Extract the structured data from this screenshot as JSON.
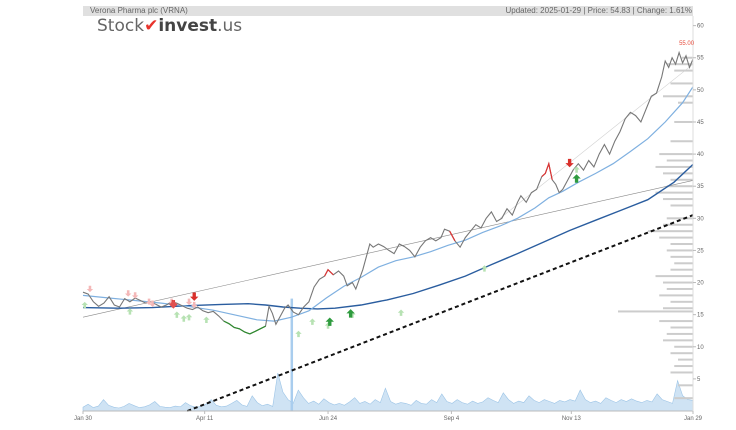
{
  "header": {
    "title": "Verona Pharma plc (VRNA)",
    "updated": "Updated: 2025-01-29 | Price: 54.83 | Change: 1.61%"
  },
  "logo": {
    "part1": "Stock",
    "part2": "invest",
    "part3": ".us"
  },
  "price_label": "55.00",
  "chart_data": {
    "type": "line",
    "title": "Verona Pharma plc (VRNA)",
    "x_ticks": [
      "Jan 30",
      "Apr 11",
      "Jun 24",
      "Sep 4",
      "Nov 13",
      "Jan 29"
    ],
    "y_ticks": [
      5,
      10,
      15,
      20,
      25,
      30,
      35,
      40,
      45,
      50,
      55,
      60
    ],
    "ylim": [
      0,
      61.5
    ],
    "grid": false,
    "series": [
      {
        "points": [
          [
            0,
            18.5
          ],
          [
            3,
            18.2
          ],
          [
            6,
            17.0
          ],
          [
            9,
            16.3
          ],
          [
            12,
            16.8
          ],
          [
            15,
            17.8
          ],
          [
            18,
            16.5
          ],
          [
            21,
            16.2
          ],
          [
            24,
            17.5
          ],
          [
            27,
            17.0
          ],
          [
            30,
            17.6
          ],
          [
            33,
            17.2
          ],
          [
            36,
            16.8
          ],
          [
            39,
            17.0
          ],
          [
            42,
            16.6
          ],
          [
            45,
            16.2
          ],
          [
            48,
            16.5
          ],
          [
            51,
            17.0
          ],
          [
            54,
            16.8
          ],
          [
            57,
            16.4
          ],
          [
            60,
            16.0
          ],
          [
            63,
            15.8
          ],
          [
            66,
            16.2
          ],
          [
            69,
            15.6
          ],
          [
            72,
            15.3
          ],
          [
            75,
            15.5
          ],
          [
            78,
            14.8
          ],
          [
            81,
            14.0
          ],
          [
            84,
            13.6
          ],
          [
            87,
            13.0
          ],
          [
            90,
            12.8
          ],
          [
            93,
            12.3
          ],
          [
            96,
            12.0
          ],
          [
            99,
            12.4
          ],
          [
            102,
            12.8
          ],
          [
            105,
            13.2
          ],
          [
            107,
            16.3
          ],
          [
            109,
            15.2
          ],
          [
            111,
            13.5
          ],
          [
            114,
            15.0
          ],
          [
            116,
            16.0
          ],
          [
            118,
            16.5
          ],
          [
            121,
            15.4
          ],
          [
            124,
            15.0
          ],
          [
            127,
            16.2
          ],
          [
            130,
            17.0
          ],
          [
            133,
            19.3
          ],
          [
            136,
            20.5
          ],
          [
            139,
            21.0
          ],
          [
            141,
            22.0
          ],
          [
            144,
            21.2
          ],
          [
            147,
            21.8
          ],
          [
            150,
            21.0
          ],
          [
            152,
            19.5
          ],
          [
            155,
            20.0
          ],
          [
            157,
            19.0
          ],
          [
            159,
            20.5
          ],
          [
            161,
            22.0
          ],
          [
            163,
            24.0
          ],
          [
            165,
            26.0
          ],
          [
            167,
            25.5
          ],
          [
            170,
            26.0
          ],
          [
            173,
            25.6
          ],
          [
            176,
            25.0
          ],
          [
            179,
            24.5
          ],
          [
            182,
            26.0
          ],
          [
            185,
            25.6
          ],
          [
            188,
            25.0
          ],
          [
            191,
            24.0
          ],
          [
            194,
            25.5
          ],
          [
            197,
            26.5
          ],
          [
            200,
            27.0
          ],
          [
            203,
            26.5
          ],
          [
            206,
            27.0
          ],
          [
            208,
            28.3
          ],
          [
            211,
            28.0
          ],
          [
            214,
            26.5
          ],
          [
            217,
            25.5
          ],
          [
            220,
            27.0
          ],
          [
            223,
            28.0
          ],
          [
            226,
            29.0
          ],
          [
            229,
            28.5
          ],
          [
            232,
            30.0
          ],
          [
            235,
            31.0
          ],
          [
            238,
            29.5
          ],
          [
            241,
            30.0
          ],
          [
            244,
            31.5
          ],
          [
            247,
            30.5
          ],
          [
            250,
            32.5
          ],
          [
            252,
            33.5
          ],
          [
            255,
            32.5
          ],
          [
            258,
            34.0
          ],
          [
            261,
            34.5
          ],
          [
            264,
            36.5
          ],
          [
            266,
            37.0
          ],
          [
            268,
            38.5
          ],
          [
            270,
            36.0
          ],
          [
            272,
            35.3
          ],
          [
            274,
            34.0
          ],
          [
            276,
            34.5
          ],
          [
            279,
            36.0
          ],
          [
            282,
            37.5
          ],
          [
            285,
            38.5
          ],
          [
            288,
            37.5
          ],
          [
            291,
            39.0
          ],
          [
            294,
            38.0
          ],
          [
            297,
            40.0
          ],
          [
            300,
            41.5
          ],
          [
            303,
            40.0
          ],
          [
            306,
            42.0
          ],
          [
            309,
            43.5
          ],
          [
            312,
            45.5
          ],
          [
            315,
            46.5
          ],
          [
            318,
            46.0
          ],
          [
            321,
            45.0
          ],
          [
            324,
            47.0
          ],
          [
            327,
            49.0
          ],
          [
            330,
            49.5
          ],
          [
            333,
            52.0
          ],
          [
            335,
            54.5
          ],
          [
            337,
            53.5
          ],
          [
            339,
            55.0
          ],
          [
            341,
            54.0
          ],
          [
            343,
            55.8
          ],
          [
            345,
            54.2
          ],
          [
            347,
            55.3
          ],
          [
            349,
            53.5
          ],
          [
            351,
            54.8
          ]
        ]
      },
      {
        "points": [
          [
            0,
            18.0
          ],
          [
            15,
            17.6
          ],
          [
            30,
            17.2
          ],
          [
            45,
            16.8
          ],
          [
            60,
            16.3
          ],
          [
            75,
            15.7
          ],
          [
            90,
            14.8
          ],
          [
            100,
            14.2
          ],
          [
            110,
            14.0
          ],
          [
            120,
            14.6
          ],
          [
            130,
            15.6
          ],
          [
            140,
            17.6
          ],
          [
            150,
            19.4
          ],
          [
            160,
            20.8
          ],
          [
            170,
            22.4
          ],
          [
            180,
            23.4
          ],
          [
            190,
            24.0
          ],
          [
            200,
            24.8
          ],
          [
            210,
            25.8
          ],
          [
            220,
            26.6
          ],
          [
            230,
            27.8
          ],
          [
            240,
            28.8
          ],
          [
            250,
            30.0
          ],
          [
            260,
            31.6
          ],
          [
            268,
            33.2
          ],
          [
            276,
            34.2
          ],
          [
            285,
            35.6
          ],
          [
            295,
            37.0
          ],
          [
            305,
            38.5
          ],
          [
            315,
            40.4
          ],
          [
            325,
            42.4
          ],
          [
            335,
            45.0
          ],
          [
            345,
            48.0
          ],
          [
            351,
            50.5
          ]
        ]
      },
      {
        "points": [
          [
            0,
            16.1
          ],
          [
            20,
            16.0
          ],
          [
            40,
            16.1
          ],
          [
            60,
            16.4
          ],
          [
            80,
            16.6
          ],
          [
            95,
            16.7
          ],
          [
            105,
            16.5
          ],
          [
            115,
            16.2
          ],
          [
            125,
            16.0
          ],
          [
            135,
            15.9
          ],
          [
            145,
            16.0
          ],
          [
            160,
            16.5
          ],
          [
            175,
            17.3
          ],
          [
            190,
            18.3
          ],
          [
            205,
            19.6
          ],
          [
            220,
            21.0
          ],
          [
            235,
            22.8
          ],
          [
            250,
            24.5
          ],
          [
            265,
            26.3
          ],
          [
            280,
            28.1
          ],
          [
            295,
            29.7
          ],
          [
            310,
            31.3
          ],
          [
            325,
            32.9
          ],
          [
            340,
            35.6
          ],
          [
            351,
            38.4
          ]
        ]
      },
      {
        "points": [
          [
            60,
            0
          ],
          [
            351,
            30.5
          ]
        ]
      },
      {
        "points": [
          [
            0,
            14.6
          ],
          [
            351,
            35.9
          ]
        ]
      }
    ],
    "buy_signals": [
      [
        1,
        16.5
      ],
      [
        27,
        15.5
      ],
      [
        54,
        15.0
      ],
      [
        58,
        14.4
      ],
      [
        61,
        14.6
      ],
      [
        71,
        14.2
      ],
      [
        124,
        12.0
      ],
      [
        132,
        13.9
      ],
      [
        141,
        13.3
      ],
      [
        155,
        15.0
      ],
      [
        183,
        15.3
      ],
      [
        231,
        22.2
      ],
      [
        284,
        37.6
      ]
    ],
    "sell_signals": [
      [
        4,
        19.0
      ],
      [
        26,
        18.3
      ],
      [
        30,
        18.0
      ],
      [
        38,
        17.0
      ],
      [
        40,
        16.7
      ],
      [
        51,
        17.0
      ],
      [
        61,
        17.0
      ],
      [
        64,
        16.5
      ]
    ],
    "buy_signals_strong": [
      [
        142,
        13.9
      ],
      [
        154,
        15.2
      ],
      [
        284,
        36.2
      ]
    ],
    "sell_signals_strong": [
      [
        52,
        16.6
      ],
      [
        64,
        17.8
      ],
      [
        280,
        38.6
      ]
    ],
    "volume": [
      0.1,
      0.18,
      0.09,
      0.13,
      0.3,
      0.15,
      0.1,
      0.08,
      0.12,
      0.2,
      0.14,
      0.09,
      0.11,
      0.16,
      0.25,
      0.12,
      0.1,
      0.09,
      0.13,
      0.11,
      0.22,
      0.14,
      0.1,
      0.12,
      0.18,
      0.3,
      0.15,
      0.11,
      0.13,
      0.2,
      0.28,
      0.16,
      0.12,
      0.4,
      0.22,
      0.14,
      0.18,
      0.12,
      1.0,
      0.5,
      0.3,
      0.2,
      0.55,
      0.35,
      0.2,
      0.26,
      0.18,
      0.32,
      0.22,
      0.16,
      0.2,
      0.15,
      0.24,
      0.35,
      0.2,
      0.25,
      0.18,
      0.3,
      0.22,
      0.6,
      0.25,
      0.18,
      0.22,
      0.2,
      0.15,
      0.28,
      0.2,
      0.18,
      0.3,
      0.22,
      0.45,
      0.25,
      0.2,
      0.3,
      0.22,
      0.18,
      0.26,
      0.2,
      0.24,
      0.35,
      0.28,
      0.22,
      0.48,
      0.3,
      0.2,
      0.26,
      0.22,
      0.4,
      0.28,
      0.22,
      0.3,
      0.25,
      0.2,
      0.28,
      0.24,
      0.3,
      0.26,
      0.55,
      0.3,
      0.22,
      0.26,
      0.2,
      0.35,
      0.28,
      0.22,
      0.3,
      0.25,
      0.32,
      0.26,
      0.22,
      0.28,
      0.24,
      0.45,
      0.3,
      0.25,
      0.2,
      0.8,
      0.4,
      0.3,
      0.28
    ],
    "volume_profile": [
      [
        55,
        0.15
      ],
      [
        54,
        0.35
      ],
      [
        53,
        0.25
      ],
      [
        51,
        0.3
      ],
      [
        49,
        0.4
      ],
      [
        48,
        0.2
      ],
      [
        45,
        0.25
      ],
      [
        42,
        0.3
      ],
      [
        40,
        0.45
      ],
      [
        39,
        0.35
      ],
      [
        38,
        0.5
      ],
      [
        37,
        0.4
      ],
      [
        36,
        0.3
      ],
      [
        35,
        0.35
      ],
      [
        34,
        0.5
      ],
      [
        33,
        0.4
      ],
      [
        32,
        0.3
      ],
      [
        30,
        0.35
      ],
      [
        29,
        0.4
      ],
      [
        28,
        0.6
      ],
      [
        27,
        0.45
      ],
      [
        26,
        0.3
      ],
      [
        25,
        0.35
      ],
      [
        24,
        0.3
      ],
      [
        23,
        0.25
      ],
      [
        22,
        0.3
      ],
      [
        21,
        0.5
      ],
      [
        20,
        0.4
      ],
      [
        19,
        0.35
      ],
      [
        18,
        0.45
      ],
      [
        17,
        0.3
      ],
      [
        16,
        0.4
      ],
      [
        15.5,
        1.0
      ],
      [
        14,
        0.45
      ],
      [
        13,
        0.3
      ],
      [
        12,
        0.35
      ],
      [
        11,
        0.4
      ],
      [
        10,
        0.25
      ],
      [
        9,
        0.3
      ],
      [
        8,
        0.2
      ],
      [
        7,
        0.25
      ],
      [
        6,
        0.3
      ],
      [
        4,
        0.2
      ],
      [
        2,
        0.25
      ]
    ]
  }
}
